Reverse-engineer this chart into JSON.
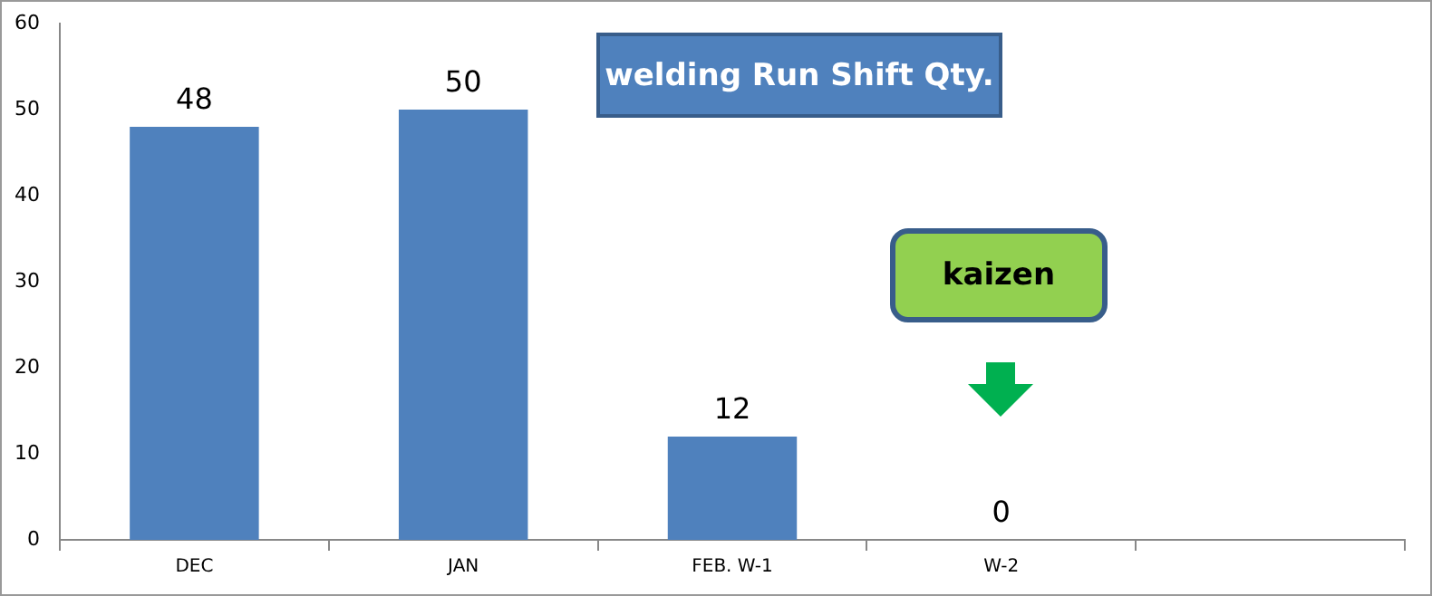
{
  "chart_data": {
    "type": "bar",
    "title": "welding Run Shift Qty.",
    "categories": [
      "DEC",
      "JAN",
      "FEB. W-1",
      "W-2",
      null
    ],
    "values": [
      48,
      50,
      12,
      0,
      null
    ],
    "color": "#4f81bd",
    "ylim": [
      0,
      60
    ],
    "yticks": [
      0,
      10,
      20,
      30,
      40,
      50,
      60
    ],
    "grid": false,
    "legend": false,
    "data_labels": true,
    "annotations": [
      "kaizen"
    ]
  }
}
